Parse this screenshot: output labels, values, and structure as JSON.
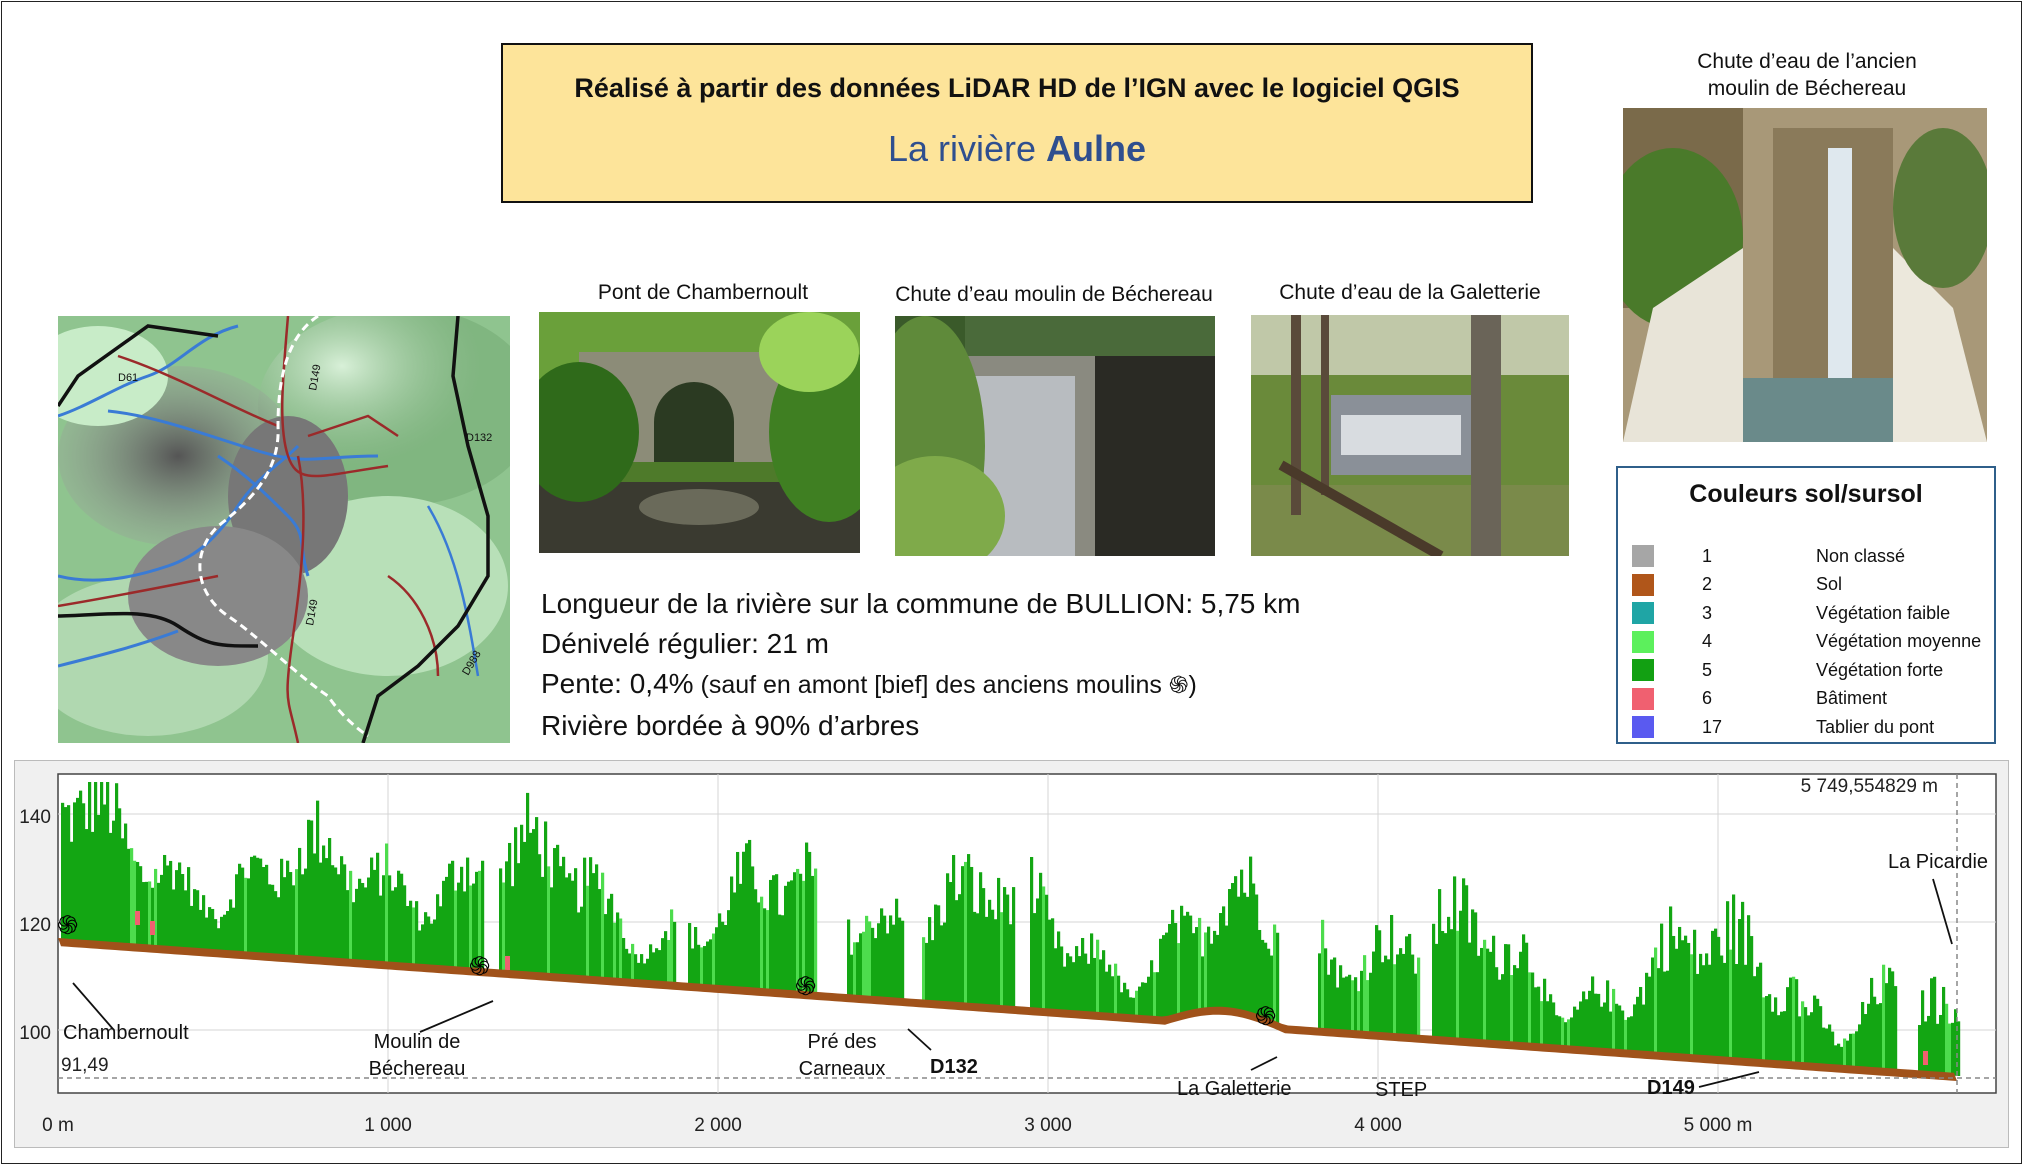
{
  "header": {
    "line1": "Réalisé à partir des données LiDAR HD de l’IGN avec le logiciel QGIS",
    "line2_prefix": "La rivière ",
    "line2_name": "Aulne"
  },
  "photos": {
    "pont": "Pont de Chambernoult",
    "bechereau_fall": "Chute d’eau moulin de Béchereau",
    "galetterie_fall": "Chute d’eau de la Galetterie",
    "ancien_line1": "Chute d’eau de l’ancien",
    "ancien_line2": "moulin de Béchereau"
  },
  "map": {
    "road_labels": [
      "D61",
      "D149",
      "D132",
      "D149",
      "D988"
    ]
  },
  "stats": {
    "length": "Longueur de la rivière sur la commune de BULLION:  5,75 km",
    "drop": "Dénivelé régulier:  21 m",
    "slope_prefix": "Pente:   0,4%",
    "slope_note": " (sauf en amont [bief] des anciens moulins ",
    "slope_close": ")",
    "trees": "Rivière bordée à 90% d’arbres"
  },
  "legend": {
    "title": "Couleurs sol/sursol",
    "items": [
      {
        "code": "1",
        "label": "Non classé",
        "color": "#a6a6a6"
      },
      {
        "code": "2",
        "label": "Sol",
        "color": "#b0561a"
      },
      {
        "code": "3",
        "label": "Végétation faible",
        "color": "#1fa5a5"
      },
      {
        "code": "4",
        "label": "Végétation moyenne",
        "color": "#5cf05c"
      },
      {
        "code": "5",
        "label": "Végétation forte",
        "color": "#12a012"
      },
      {
        "code": "6",
        "label": "Bâtiment",
        "color": "#f06070"
      },
      {
        "code": "17",
        "label": "Tablier du pont",
        "color": "#5a5af0"
      }
    ]
  },
  "profile": {
    "y_ticks": [
      "140",
      "120",
      "100"
    ],
    "x_ticks": [
      "0 m",
      "1 000",
      "2 000",
      "3 000",
      "4 000",
      "5 000 m"
    ],
    "min_label": "91,49",
    "coord_label": "5 749,554829 m",
    "annotations": {
      "chambernoult": "Chambernoult",
      "moulin1": "Moulin de",
      "moulin2": "Béchereau",
      "pre1": "Pré des",
      "pre2": "Carneaux",
      "d132": "D132",
      "galetterie": "La Galetterie",
      "step": "STEP",
      "d149": "D149",
      "picardie": "La Picardie"
    },
    "ground_color": "#a0521a",
    "veg_color": "#13a613",
    "veg_light": "#4ddc4d"
  }
}
